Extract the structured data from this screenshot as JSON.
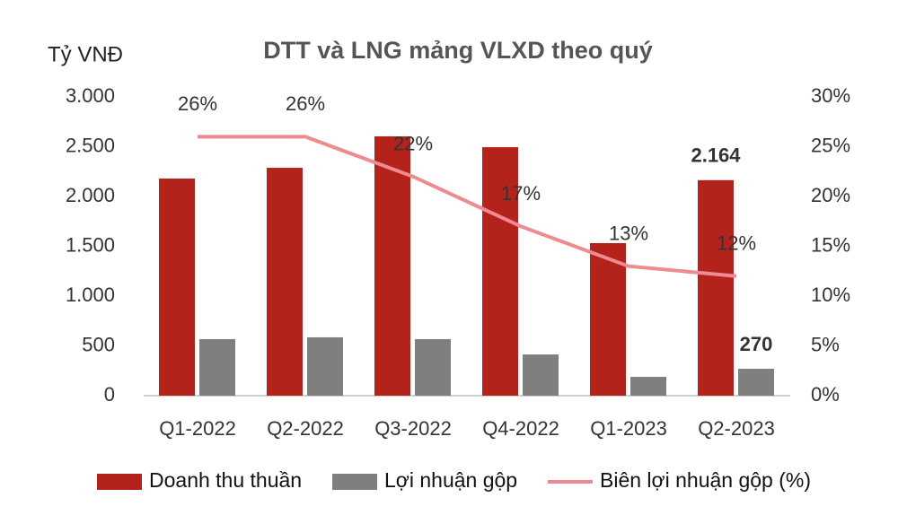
{
  "chart_data": {
    "type": "bar-line",
    "title": "DTT và LNG mảng VLXD theo quý",
    "y_label": "Tỷ VNĐ",
    "categories": [
      "Q1-2022",
      "Q2-2022",
      "Q3-2022",
      "Q4-2022",
      "Q1-2023",
      "Q2-2023"
    ],
    "series": [
      {
        "name": "Doanh thu thuần",
        "type": "bar",
        "color": "#b3221b",
        "values": [
          2180,
          2288,
          2604,
          2495,
          1532,
          2164
        ],
        "value_labels": [
          null,
          null,
          null,
          null,
          null,
          "2.164"
        ]
      },
      {
        "name": "Lợi nhuận gộp",
        "type": "bar",
        "color": "#7f7f7f",
        "values": [
          568,
          586,
          568,
          414,
          189,
          270
        ],
        "value_labels": [
          null,
          null,
          null,
          null,
          null,
          "270"
        ]
      },
      {
        "name": "Biên lợi nhuận gộp (%)",
        "type": "line",
        "axis": "y2",
        "color": "#ee8a90",
        "values": [
          26,
          26,
          22,
          17,
          13,
          12
        ],
        "value_labels": [
          "26%",
          "26%",
          "22%",
          "17%",
          "13%",
          "12%"
        ]
      }
    ],
    "ylim": [
      0,
      3000
    ],
    "yticks": [
      0,
      500,
      {
        "value": 1000,
        "label": "1.000"
      },
      {
        "value": 1500,
        "label": "1.500"
      },
      {
        "value": 2000,
        "label": "2.000"
      },
      {
        "value": 2500,
        "label": "2.500"
      },
      {
        "value": 3000,
        "label": "3.000"
      }
    ],
    "y2lim": [
      0,
      30
    ],
    "y2ticks": [
      {
        "value": 0,
        "label": "0%"
      },
      {
        "value": 5,
        "label": "5%"
      },
      {
        "value": 10,
        "label": "10%"
      },
      {
        "value": 15,
        "label": "15%"
      },
      {
        "value": 20,
        "label": "20%"
      },
      {
        "value": 25,
        "label": "25%"
      },
      {
        "value": 30,
        "label": "30%"
      }
    ],
    "grid": false,
    "legend": "bottom"
  }
}
